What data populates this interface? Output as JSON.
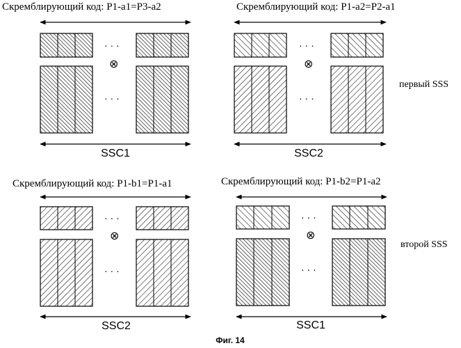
{
  "figure": {
    "caption": "Фиг. 14",
    "row_labels": [
      "первый SSS",
      "второй SSS"
    ],
    "panels": [
      {
        "scrambling_label": "Скремблирующий код: P1-a1=P3-a2",
        "ssc_label": "SSC1",
        "hatch": "dense-diag"
      },
      {
        "scrambling_label": "Скремблирующий код: P1-a2=P2-a1",
        "ssc_label": "SSC2",
        "hatch": "back-diag"
      },
      {
        "scrambling_label": "Скремблирующий код: P1-b1=P1-a1",
        "ssc_label": "SSC2",
        "hatch": "fwd-diag"
      },
      {
        "scrambling_label": "Скремблирующий код: P1-b2=P1-a2",
        "ssc_label": "SSC1",
        "hatch": "back-diag"
      }
    ],
    "ellipsis": "· · ·",
    "multiply_symbol": "⊗"
  }
}
